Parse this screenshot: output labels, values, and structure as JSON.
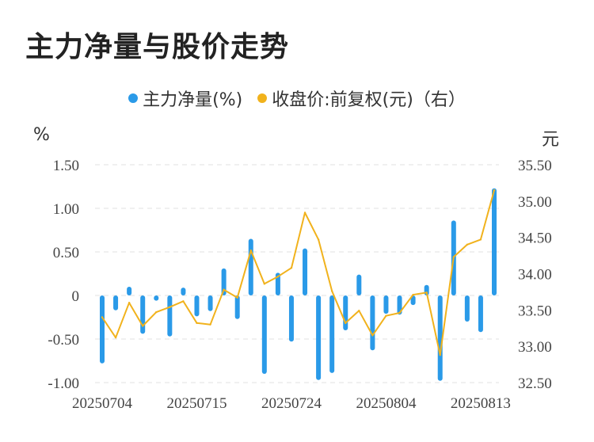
{
  "title": "主力净量与股价走势",
  "legend": {
    "series1": "主力净量(%)",
    "series2": "收盘价:前复权(元)（右）"
  },
  "units": {
    "left": "%",
    "right": "元"
  },
  "colors": {
    "bar": "#2a9ae8",
    "line": "#f1b21c",
    "grid": "#e2e2e2"
  },
  "chart_data": {
    "type": "bar",
    "title": "主力净量与股价走势",
    "x_tick_labels": [
      "20250704",
      "20250715",
      "20250724",
      "20250804",
      "20250813"
    ],
    "x_tick_indices": [
      0,
      7,
      14,
      21,
      28
    ],
    "y_left": {
      "ticks": [
        "1.50",
        "1.00",
        "0.50",
        "0",
        "-0.50",
        "-1.00"
      ],
      "tick_values": [
        1.5,
        1.0,
        0.5,
        0,
        -0.5,
        -1.0
      ],
      "range": [
        -1.0,
        1.5
      ]
    },
    "y_right": {
      "ticks": [
        "35.50",
        "35.00",
        "34.50",
        "34.00",
        "33.50",
        "33.00",
        "32.50"
      ],
      "tick_values": [
        35.5,
        35.0,
        34.5,
        34.0,
        33.5,
        33.0,
        32.5
      ],
      "range": [
        32.5,
        35.5
      ]
    },
    "grid": true,
    "legend_position": "top-center",
    "series": [
      {
        "name": "主力净量(%)",
        "type": "bar",
        "axis": "left",
        "values": [
          -0.78,
          -0.17,
          0.1,
          -0.44,
          -0.06,
          -0.47,
          0.09,
          -0.24,
          -0.18,
          0.31,
          -0.27,
          0.65,
          -0.9,
          0.26,
          -0.53,
          0.54,
          -0.97,
          -0.89,
          -0.4,
          0.24,
          -0.63,
          -0.21,
          -0.22,
          -0.11,
          0.12,
          -0.98,
          0.86,
          -0.3,
          -0.42,
          1.23
        ]
      },
      {
        "name": "收盘价:前复权(元)（右）",
        "type": "line",
        "axis": "right",
        "values": [
          33.4,
          33.12,
          33.6,
          33.28,
          33.47,
          33.54,
          33.62,
          33.32,
          33.3,
          33.78,
          33.67,
          34.32,
          33.86,
          33.96,
          34.08,
          34.84,
          34.47,
          33.76,
          33.32,
          33.49,
          33.15,
          33.42,
          33.46,
          33.71,
          33.74,
          32.88,
          34.23,
          34.4,
          34.47,
          35.15
        ]
      }
    ]
  }
}
